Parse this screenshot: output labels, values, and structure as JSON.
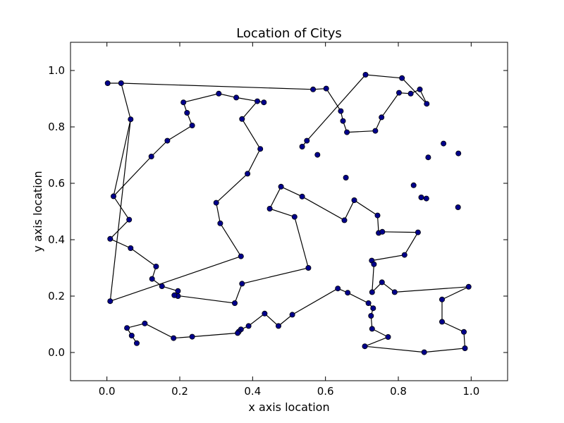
{
  "chart_data": {
    "type": "line",
    "title": "Location of Citys",
    "xlabel": "x axis location",
    "ylabel": "y axis location",
    "xlim": [
      -0.1,
      1.1
    ],
    "ylim": [
      -0.1,
      1.1
    ],
    "xticks": [
      0.0,
      0.2,
      0.4,
      0.6,
      0.8,
      1.0
    ],
    "yticks": [
      0.0,
      0.2,
      0.4,
      0.6,
      0.8,
      1.0
    ],
    "xtick_labels": [
      "0.0",
      "0.2",
      "0.4",
      "0.6",
      "0.8",
      "1.0"
    ],
    "ytick_labels": [
      "0.0",
      "0.2",
      "0.4",
      "0.6",
      "0.8",
      "1.0"
    ],
    "grid": false,
    "line_color": "#000000",
    "marker_color": "#00008b",
    "series": [
      {
        "values": [
          [
            0.002,
            0.955
          ],
          [
            0.039,
            0.955
          ],
          [
            0.566,
            0.933
          ],
          [
            0.602,
            0.936
          ],
          [
            0.642,
            0.856
          ],
          [
            0.648,
            0.821
          ],
          [
            0.659,
            0.781
          ],
          [
            0.737,
            0.786
          ],
          [
            0.754,
            0.834
          ],
          [
            0.802,
            0.921
          ],
          [
            0.834,
            0.918
          ],
          [
            0.859,
            0.933
          ],
          [
            0.878,
            0.882
          ],
          [
            0.81,
            0.973
          ],
          [
            0.71,
            0.985
          ],
          [
            0.549,
            0.751
          ],
          [
            0.536,
            0.73
          ]
        ]
      },
      {
        "values": [
          [
            0.039,
            0.955
          ],
          [
            0.065,
            0.827
          ],
          [
            0.018,
            0.554
          ],
          [
            0.061,
            0.471
          ],
          [
            0.009,
            0.403
          ],
          [
            0.065,
            0.37
          ],
          [
            0.135,
            0.305
          ],
          [
            0.124,
            0.261
          ],
          [
            0.151,
            0.235
          ],
          [
            0.195,
            0.218
          ],
          [
            0.195,
            0.2
          ],
          [
            0.185,
            0.203
          ],
          [
            0.351,
            0.175
          ],
          [
            0.371,
            0.244
          ],
          [
            0.553,
            0.3
          ],
          [
            0.515,
            0.481
          ],
          [
            0.447,
            0.51
          ],
          [
            0.478,
            0.588
          ],
          [
            0.536,
            0.553
          ],
          [
            0.652,
            0.469
          ],
          [
            0.679,
            0.54
          ],
          [
            0.743,
            0.486
          ],
          [
            0.746,
            0.424
          ],
          [
            0.756,
            0.428
          ],
          [
            0.854,
            0.426
          ],
          [
            0.817,
            0.346
          ],
          [
            0.727,
            0.326
          ],
          [
            0.733,
            0.313
          ],
          [
            0.728,
            0.214
          ],
          [
            0.755,
            0.249
          ],
          [
            0.79,
            0.214
          ],
          [
            0.993,
            0.233
          ],
          [
            0.92,
            0.188
          ],
          [
            0.92,
            0.109
          ],
          [
            0.98,
            0.073
          ],
          [
            0.983,
            0.015
          ],
          [
            0.871,
            0.001
          ],
          [
            0.708,
            0.022
          ],
          [
            0.772,
            0.055
          ],
          [
            0.728,
            0.084
          ],
          [
            0.725,
            0.13
          ],
          [
            0.731,
            0.157
          ],
          [
            0.718,
            0.175
          ],
          [
            0.661,
            0.212
          ],
          [
            0.634,
            0.227
          ],
          [
            0.509,
            0.134
          ],
          [
            0.471,
            0.094
          ],
          [
            0.433,
            0.138
          ],
          [
            0.389,
            0.094
          ],
          [
            0.368,
            0.082
          ],
          [
            0.362,
            0.074
          ],
          [
            0.359,
            0.069
          ],
          [
            0.234,
            0.056
          ],
          [
            0.183,
            0.051
          ],
          [
            0.104,
            0.103
          ],
          [
            0.055,
            0.087
          ],
          [
            0.068,
            0.06
          ],
          [
            0.082,
            0.033
          ]
        ]
      },
      {
        "values": [
          [
            0.009,
            0.182
          ],
          [
            0.368,
            0.341
          ],
          [
            0.311,
            0.458
          ],
          [
            0.3,
            0.531
          ],
          [
            0.386,
            0.634
          ],
          [
            0.421,
            0.722
          ],
          [
            0.371,
            0.828
          ],
          [
            0.413,
            0.891
          ],
          [
            0.431,
            0.887
          ],
          [
            0.355,
            0.904
          ],
          [
            0.307,
            0.918
          ],
          [
            0.21,
            0.887
          ],
          [
            0.22,
            0.85
          ],
          [
            0.234,
            0.805
          ],
          [
            0.166,
            0.751
          ],
          [
            0.122,
            0.695
          ],
          [
            0.018,
            0.554
          ]
        ]
      },
      {
        "values": [
          [
            0.065,
            0.827
          ],
          [
            0.009,
            0.182
          ]
        ]
      }
    ],
    "unconnected_points": [
      [
        0.578,
        0.701
      ],
      [
        0.656,
        0.62
      ],
      [
        0.842,
        0.593
      ],
      [
        0.863,
        0.55
      ],
      [
        0.877,
        0.546
      ],
      [
        0.882,
        0.692
      ],
      [
        0.924,
        0.741
      ],
      [
        0.965,
        0.706
      ],
      [
        0.964,
        0.515
      ]
    ]
  }
}
